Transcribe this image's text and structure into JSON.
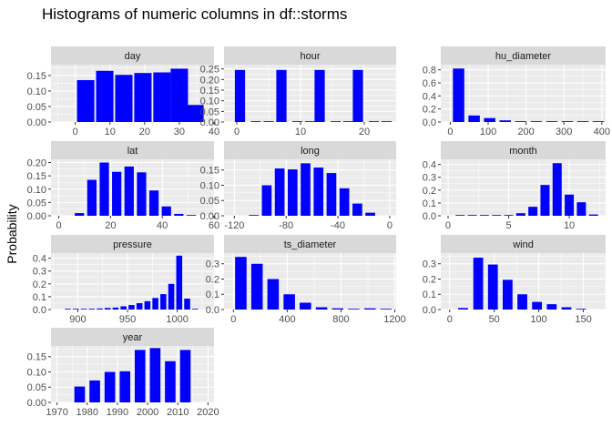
{
  "figure": {
    "title": "Histograms of numeric columns in df::storms",
    "ylabel": "Probability",
    "colors": {
      "bar": "#0000ff",
      "panel": "#ebebeb",
      "grid": "#ffffff",
      "strip": "#d9d9d9",
      "tick_text": "#4d4d4d"
    }
  },
  "chart_data": [
    {
      "type": "bar",
      "title": "day",
      "xlabel": "",
      "ylabel": "Probability",
      "xlim": [
        -7,
        40
      ],
      "ylim": [
        0,
        0.185
      ],
      "xticks": [
        0,
        10,
        20,
        30,
        40
      ],
      "yticks": [
        0.0,
        0.05,
        0.1,
        0.15
      ],
      "yticklabels": [
        "0.00",
        "0.05",
        "0.10",
        "0.15"
      ],
      "binwidth": 5,
      "x": [
        3,
        8.5,
        14,
        19.5,
        25,
        30,
        34.5
      ],
      "values": [
        0.135,
        0.165,
        0.152,
        0.158,
        0.16,
        0.172,
        0.055
      ]
    },
    {
      "type": "bar",
      "title": "hour",
      "xlabel": "",
      "ylabel": "Probability",
      "xlim": [
        -2,
        25
      ],
      "ylim": [
        0,
        0.27
      ],
      "xticks": [
        0,
        10,
        20
      ],
      "yticks": [
        0.0,
        0.05,
        0.1,
        0.15,
        0.2,
        0.25
      ],
      "yticklabels": [
        "0.00",
        "0.05",
        "0.10",
        "0.15",
        "0.20",
        "0.25"
      ],
      "binwidth": 1.6,
      "x": [
        0.5,
        3,
        5,
        7,
        9.5,
        11.5,
        13,
        15.5,
        17.5,
        19,
        21.5,
        23.5
      ],
      "values": [
        0.245,
        0.003,
        0.003,
        0.245,
        0.003,
        0.003,
        0.245,
        0.003,
        0.003,
        0.245,
        0.003,
        0.003
      ]
    },
    {
      "type": "bar",
      "title": "hu_diameter",
      "xlabel": "",
      "ylabel": "Probability",
      "xlim": [
        -25,
        410
      ],
      "ylim": [
        0,
        0.88
      ],
      "xticks": [
        0,
        100,
        200,
        300,
        400
      ],
      "yticks": [
        0.0,
        0.2,
        0.4,
        0.6,
        0.8
      ],
      "yticklabels": [
        "0.0",
        "0.2",
        "0.4",
        "0.6",
        "0.8"
      ],
      "binwidth": 30,
      "x": [
        22,
        63,
        104,
        145,
        186,
        227,
        268,
        309,
        350,
        391
      ],
      "values": [
        0.82,
        0.1,
        0.06,
        0.025,
        0.01,
        0.003,
        0.001,
        0.001,
        0.001,
        0.001
      ]
    },
    {
      "type": "bar",
      "title": "lat",
      "xlabel": "",
      "ylabel": "Probability",
      "xlim": [
        -3,
        60
      ],
      "ylim": [
        0,
        0.212
      ],
      "xticks": [
        0,
        20,
        40,
        60
      ],
      "yticks": [
        0.0,
        0.05,
        0.1,
        0.15,
        0.2
      ],
      "yticklabels": [
        "0.00",
        "0.05",
        "0.10",
        "0.15",
        "0.20"
      ],
      "binwidth": 3.6,
      "x": [
        8,
        12.8,
        17.6,
        22.4,
        27.2,
        32,
        36.8,
        41.6,
        46.4,
        51.2
      ],
      "values": [
        0.01,
        0.135,
        0.2,
        0.165,
        0.185,
        0.163,
        0.095,
        0.035,
        0.007,
        0.001
      ]
    },
    {
      "type": "bar",
      "title": "long",
      "xlabel": "",
      "ylabel": "Probability",
      "xlim": [
        -128,
        5
      ],
      "ylim": [
        0,
        0.185
      ],
      "xticks": [
        -120,
        -80,
        -40,
        0
      ],
      "yticks": [
        0.0,
        0.05,
        0.1,
        0.15
      ],
      "yticklabels": [
        "0.00",
        "0.05",
        "0.10",
        "0.15"
      ],
      "binwidth": 7.5,
      "x": [
        -105,
        -95,
        -85,
        -75,
        -65,
        -55,
        -45,
        -35,
        -25,
        -15
      ],
      "values": [
        0.002,
        0.1,
        0.155,
        0.152,
        0.172,
        0.158,
        0.14,
        0.09,
        0.04,
        0.01
      ]
    },
    {
      "type": "bar",
      "title": "month",
      "xlabel": "",
      "ylabel": "Probability",
      "xlim": [
        -0.6,
        13
      ],
      "ylim": [
        0,
        0.44
      ],
      "xticks": [
        0,
        5,
        10
      ],
      "yticks": [
        0.0,
        0.1,
        0.2,
        0.3,
        0.4
      ],
      "yticklabels": [
        "0.0",
        "0.1",
        "0.2",
        "0.3",
        "0.4"
      ],
      "binwidth": 0.75,
      "x": [
        1,
        2,
        3,
        4,
        5,
        6,
        7,
        8,
        9,
        10,
        11,
        12
      ],
      "values": [
        0.001,
        0.001,
        0.001,
        0.002,
        0.005,
        0.02,
        0.07,
        0.24,
        0.41,
        0.165,
        0.105,
        0.01
      ]
    },
    {
      "type": "bar",
      "title": "pressure",
      "xlabel": "",
      "ylabel": "Probability",
      "xlim": [
        873,
        1037
      ],
      "ylim": [
        0,
        0.44
      ],
      "xticks": [
        900,
        950,
        1000
      ],
      "yticks": [
        0.0,
        0.1,
        0.2,
        0.3,
        0.4
      ],
      "yticklabels": [
        "0.0",
        "0.1",
        "0.2",
        "0.3",
        "0.4"
      ],
      "binwidth": 6,
      "x": [
        890,
        898,
        906,
        914,
        922,
        930,
        938,
        946,
        954,
        962,
        970,
        978,
        986,
        994,
        1002,
        1010,
        1018
      ],
      "values": [
        0.001,
        0.002,
        0.004,
        0.006,
        0.008,
        0.012,
        0.015,
        0.025,
        0.035,
        0.05,
        0.065,
        0.09,
        0.12,
        0.2,
        0.42,
        0.085,
        0.003
      ]
    },
    {
      "type": "bar",
      "title": "ts_diameter",
      "xlabel": "",
      "ylabel": "Probability",
      "xlim": [
        -70,
        1210
      ],
      "ylim": [
        0,
        0.37
      ],
      "xticks": [
        0,
        400,
        800,
        1200
      ],
      "yticks": [
        0.0,
        0.1,
        0.2,
        0.3
      ],
      "yticklabels": [
        "0.0",
        "0.1",
        "0.2",
        "0.3"
      ],
      "binwidth": 85,
      "x": [
        55,
        175,
        295,
        415,
        535,
        655,
        775,
        895,
        1015,
        1135
      ],
      "values": [
        0.345,
        0.3,
        0.2,
        0.1,
        0.045,
        0.015,
        0.008,
        0.004,
        0.008,
        0.001
      ]
    },
    {
      "type": "bar",
      "title": "wind",
      "xlabel": "",
      "ylabel": "Probability",
      "xlim": [
        -10,
        175
      ],
      "ylim": [
        0,
        0.37
      ],
      "xticks": [
        0,
        50,
        100,
        150
      ],
      "yticks": [
        0.0,
        0.1,
        0.2,
        0.3
      ],
      "yticklabels": [
        "0.0",
        "0.1",
        "0.2",
        "0.3"
      ],
      "binwidth": 11,
      "x": [
        15,
        32,
        48.5,
        65,
        81.5,
        98,
        114.5,
        131,
        147.5
      ],
      "values": [
        0.01,
        0.34,
        0.295,
        0.195,
        0.1,
        0.05,
        0.035,
        0.015,
        0.005
      ]
    },
    {
      "type": "bar",
      "title": "year",
      "xlabel": "",
      "ylabel": "Probability",
      "xlim": [
        1968,
        2022
      ],
      "ylim": [
        0,
        0.185
      ],
      "xticks": [
        1970,
        1980,
        1990,
        2000,
        2010,
        2020
      ],
      "yticks": [
        0.0,
        0.05,
        0.1,
        0.15
      ],
      "yticklabels": [
        "0.00",
        "0.05",
        "0.10",
        "0.15"
      ],
      "binwidth": 3.5,
      "x": [
        1977.5,
        1982.5,
        1987.5,
        1992.5,
        1997.5,
        2002.5,
        2007.5,
        2012.5
      ],
      "values": [
        0.052,
        0.072,
        0.1,
        0.102,
        0.172,
        0.178,
        0.135,
        0.172
      ]
    }
  ]
}
